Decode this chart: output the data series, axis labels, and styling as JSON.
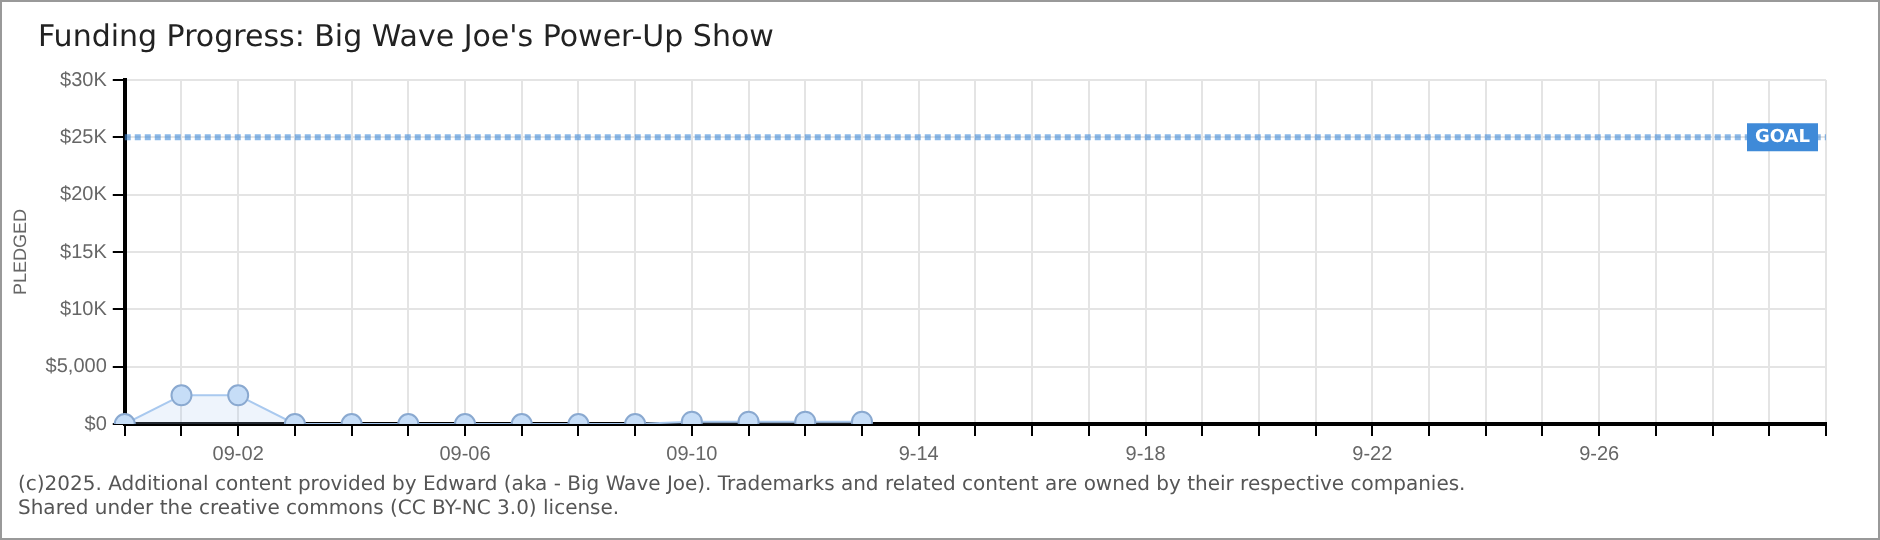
{
  "chart_data": {
    "type": "area",
    "title": "Funding Progress: Big Wave Joe's Power-Up Show",
    "ylabel": "PLEDGED",
    "categories": [
      null,
      null,
      "09-02",
      null,
      null,
      null,
      "09-06",
      null,
      null,
      null,
      "09-10",
      null,
      null,
      null,
      "9-14",
      null,
      null,
      null,
      "9-18",
      null,
      null,
      null,
      "9-22",
      null,
      null,
      null,
      "9-26",
      null,
      null,
      null,
      null
    ],
    "series": [
      {
        "color": "#a9c9ef",
        "values": [
          0,
          2500,
          2500,
          0,
          0,
          0,
          0,
          0,
          0,
          0,
          200,
          200,
          200,
          200,
          null,
          null,
          null,
          null,
          null,
          null,
          null,
          null,
          null,
          null,
          null,
          null,
          null,
          null,
          null,
          null,
          null
        ]
      }
    ],
    "ylim": [
      0,
      30000
    ],
    "yticks": [
      {
        "value": 0,
        "label": "$0"
      },
      {
        "value": 5000,
        "label": "$5,000"
      },
      {
        "value": 10000,
        "label": "$10K"
      },
      {
        "value": 15000,
        "label": "$15K"
      },
      {
        "value": 20000,
        "label": "$20K"
      },
      {
        "value": 25000,
        "label": "$25K"
      },
      {
        "value": 30000,
        "label": "$30K"
      }
    ],
    "ref_lines": [
      {
        "axis": "y",
        "value": 25000,
        "label": "GOAL",
        "color": "#3f8ad8",
        "line_style": "dotted"
      }
    ],
    "grid": true,
    "legend": false,
    "marker": "circle",
    "annotations": [
      "(c)2025. Additional content provided by Edward (aka - Big Wave Joe). Trademarks and related content are owned by their respective companies.",
      "Shared under the creative commons (CC BY-NC 3.0) license."
    ]
  }
}
